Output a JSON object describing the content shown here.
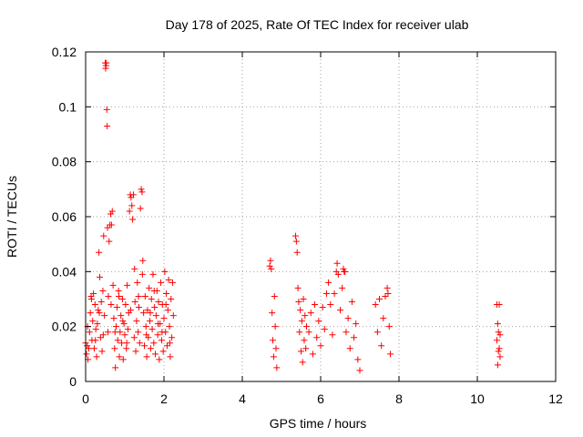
{
  "chart_data": {
    "type": "scatter",
    "title": "Day 178 of 2025, Rate Of TEC Index for receiver ulab",
    "xlabel": "GPS time / hours",
    "ylabel": "ROTI / TECUs",
    "xlim": [
      0,
      12
    ],
    "ylim": [
      0,
      0.12
    ],
    "xticks": [
      0,
      2,
      4,
      6,
      8,
      10,
      12
    ],
    "yticks": [
      0,
      0.02,
      0.04,
      0.06,
      0.08,
      0.1,
      0.12
    ],
    "xtick_labels": [
      "0",
      "2",
      "4",
      "6",
      "8",
      "10",
      "12"
    ],
    "ytick_labels": [
      "0",
      "0.02",
      "0.04",
      "0.06",
      "0.08",
      "0.1",
      "0.12"
    ],
    "grid": true,
    "marker": "+",
    "color": "#ff0000",
    "series": [
      {
        "name": "ROTI",
        "points": [
          [
            0.0,
            0.014
          ],
          [
            0.02,
            0.01
          ],
          [
            0.04,
            0.013
          ],
          [
            0.06,
            0.008
          ],
          [
            0.08,
            0.012
          ],
          [
            0.1,
            0.018
          ],
          [
            0.12,
            0.025
          ],
          [
            0.14,
            0.031
          ],
          [
            0.16,
            0.015
          ],
          [
            0.18,
            0.022
          ],
          [
            0.2,
            0.032
          ],
          [
            0.22,
            0.012
          ],
          [
            0.24,
            0.028
          ],
          [
            0.26,
            0.019
          ],
          [
            0.28,
            0.009
          ],
          [
            0.3,
            0.021
          ],
          [
            0.32,
            0.026
          ],
          [
            0.34,
            0.047
          ],
          [
            0.36,
            0.038
          ],
          [
            0.38,
            0.016
          ],
          [
            0.4,
            0.029
          ],
          [
            0.42,
            0.011
          ],
          [
            0.44,
            0.033
          ],
          [
            0.46,
            0.053
          ],
          [
            0.48,
            0.024
          ],
          [
            0.5,
            0.116
          ],
          [
            0.51,
            0.114
          ],
          [
            0.52,
            0.115
          ],
          [
            0.53,
            0.116
          ],
          [
            0.54,
            0.099
          ],
          [
            0.55,
            0.093
          ],
          [
            0.56,
            0.056
          ],
          [
            0.57,
            0.018
          ],
          [
            0.58,
            0.031
          ],
          [
            0.6,
            0.051
          ],
          [
            0.62,
            0.057
          ],
          [
            0.64,
            0.061
          ],
          [
            0.66,
            0.057
          ],
          [
            0.68,
            0.062
          ],
          [
            0.7,
            0.035
          ],
          [
            0.72,
            0.023
          ],
          [
            0.74,
            0.012
          ],
          [
            0.76,
            0.005
          ],
          [
            0.78,
            0.02
          ],
          [
            0.8,
            0.027
          ],
          [
            0.82,
            0.015
          ],
          [
            0.84,
            0.033
          ],
          [
            0.86,
            0.009
          ],
          [
            0.88,
            0.018
          ],
          [
            0.9,
            0.024
          ],
          [
            0.92,
            0.014
          ],
          [
            0.94,
            0.03
          ],
          [
            0.96,
            0.008
          ],
          [
            0.98,
            0.021
          ],
          [
            1.0,
            0.017
          ],
          [
            1.02,
            0.028
          ],
          [
            1.04,
            0.012
          ],
          [
            1.06,
            0.035
          ],
          [
            1.08,
            0.019
          ],
          [
            1.1,
            0.025
          ],
          [
            1.12,
            0.062
          ],
          [
            1.14,
            0.068
          ],
          [
            1.16,
            0.067
          ],
          [
            1.18,
            0.064
          ],
          [
            1.2,
            0.059
          ],
          [
            1.22,
            0.068
          ],
          [
            1.24,
            0.016
          ],
          [
            1.26,
            0.029
          ],
          [
            1.28,
            0.011
          ],
          [
            1.3,
            0.022
          ],
          [
            1.32,
            0.036
          ],
          [
            1.34,
            0.018
          ],
          [
            1.36,
            0.027
          ],
          [
            1.38,
            0.014
          ],
          [
            1.4,
            0.063
          ],
          [
            1.42,
            0.07
          ],
          [
            1.44,
            0.069
          ],
          [
            1.46,
            0.044
          ],
          [
            1.48,
            0.025
          ],
          [
            1.5,
            0.013
          ],
          [
            1.52,
            0.031
          ],
          [
            1.54,
            0.02
          ],
          [
            1.56,
            0.009
          ],
          [
            1.58,
            0.026
          ],
          [
            1.6,
            0.016
          ],
          [
            1.62,
            0.034
          ],
          [
            1.64,
            0.022
          ],
          [
            1.66,
            0.012
          ],
          [
            1.68,
            0.03
          ],
          [
            1.7,
            0.019
          ],
          [
            1.72,
            0.039
          ],
          [
            1.74,
            0.014
          ],
          [
            1.76,
            0.027
          ],
          [
            1.78,
            0.01
          ],
          [
            1.8,
            0.024
          ],
          [
            1.82,
            0.033
          ],
          [
            1.84,
            0.017
          ],
          [
            1.86,
            0.029
          ],
          [
            1.88,
            0.008
          ],
          [
            1.9,
            0.021
          ],
          [
            1.92,
            0.036
          ],
          [
            1.94,
            0.015
          ],
          [
            1.96,
            0.028
          ],
          [
            1.98,
            0.011
          ],
          [
            2.0,
            0.023
          ],
          [
            2.02,
            0.04
          ],
          [
            2.04,
            0.018
          ],
          [
            2.06,
            0.032
          ],
          [
            2.08,
            0.013
          ],
          [
            2.1,
            0.026
          ],
          [
            2.12,
            0.037
          ],
          [
            2.14,
            0.02
          ],
          [
            2.16,
            0.009
          ],
          [
            2.18,
            0.03
          ],
          [
            2.2,
            0.016
          ],
          [
            2.22,
            0.036
          ],
          [
            2.24,
            0.024
          ],
          [
            0.05,
            0.02
          ],
          [
            0.15,
            0.03
          ],
          [
            0.25,
            0.015
          ],
          [
            0.35,
            0.025
          ],
          [
            0.45,
            0.017
          ],
          [
            0.65,
            0.028
          ],
          [
            0.75,
            0.018
          ],
          [
            0.85,
            0.031
          ],
          [
            0.95,
            0.022
          ],
          [
            1.05,
            0.014
          ],
          [
            1.15,
            0.026
          ],
          [
            1.25,
            0.041
          ],
          [
            1.35,
            0.031
          ],
          [
            1.45,
            0.039
          ],
          [
            1.55,
            0.017
          ],
          [
            1.65,
            0.025
          ],
          [
            1.75,
            0.033
          ],
          [
            1.85,
            0.021
          ],
          [
            1.95,
            0.018
          ],
          [
            2.05,
            0.028
          ],
          [
            2.15,
            0.014
          ],
          [
            4.7,
            0.042
          ],
          [
            4.72,
            0.044
          ],
          [
            4.74,
            0.041
          ],
          [
            4.76,
            0.025
          ],
          [
            4.78,
            0.015
          ],
          [
            4.8,
            0.009
          ],
          [
            4.82,
            0.031
          ],
          [
            4.84,
            0.02
          ],
          [
            4.86,
            0.012
          ],
          [
            4.88,
            0.005
          ],
          [
            5.36,
            0.053
          ],
          [
            5.38,
            0.051
          ],
          [
            5.4,
            0.047
          ],
          [
            5.42,
            0.034
          ],
          [
            5.44,
            0.029
          ],
          [
            5.46,
            0.018
          ],
          [
            5.48,
            0.026
          ],
          [
            5.5,
            0.011
          ],
          [
            5.52,
            0.022
          ],
          [
            5.54,
            0.007
          ],
          [
            5.56,
            0.03
          ],
          [
            5.58,
            0.015
          ],
          [
            5.6,
            0.024
          ],
          [
            5.62,
            0.012
          ],
          [
            5.64,
            0.02
          ],
          [
            5.7,
            0.018
          ],
          [
            5.75,
            0.025
          ],
          [
            5.8,
            0.01
          ],
          [
            5.85,
            0.028
          ],
          [
            5.9,
            0.016
          ],
          [
            5.95,
            0.022
          ],
          [
            6.0,
            0.013
          ],
          [
            6.05,
            0.027
          ],
          [
            6.1,
            0.019
          ],
          [
            6.15,
            0.032
          ],
          [
            6.2,
            0.036
          ],
          [
            6.25,
            0.028
          ],
          [
            6.3,
            0.017
          ],
          [
            6.35,
            0.032
          ],
          [
            6.4,
            0.04
          ],
          [
            6.42,
            0.043
          ],
          [
            6.45,
            0.039
          ],
          [
            6.5,
            0.026
          ],
          [
            6.55,
            0.034
          ],
          [
            6.58,
            0.041
          ],
          [
            6.6,
            0.04
          ],
          [
            6.62,
            0.04
          ],
          [
            6.65,
            0.018
          ],
          [
            6.7,
            0.023
          ],
          [
            6.75,
            0.012
          ],
          [
            6.8,
            0.029
          ],
          [
            6.85,
            0.016
          ],
          [
            6.9,
            0.021
          ],
          [
            6.95,
            0.008
          ],
          [
            7.0,
            0.004
          ],
          [
            7.4,
            0.028
          ],
          [
            7.45,
            0.018
          ],
          [
            7.5,
            0.03
          ],
          [
            7.55,
            0.013
          ],
          [
            7.6,
            0.023
          ],
          [
            7.65,
            0.031
          ],
          [
            7.7,
            0.034
          ],
          [
            7.72,
            0.032
          ],
          [
            7.75,
            0.02
          ],
          [
            7.78,
            0.01
          ],
          [
            10.5,
            0.028
          ],
          [
            10.52,
            0.021
          ],
          [
            10.54,
            0.018
          ],
          [
            10.56,
            0.012
          ],
          [
            10.58,
            0.009
          ],
          [
            10.5,
            0.015
          ],
          [
            10.52,
            0.006
          ],
          [
            10.54,
            0.011
          ],
          [
            10.56,
            0.028
          ],
          [
            10.58,
            0.017
          ]
        ]
      }
    ]
  }
}
